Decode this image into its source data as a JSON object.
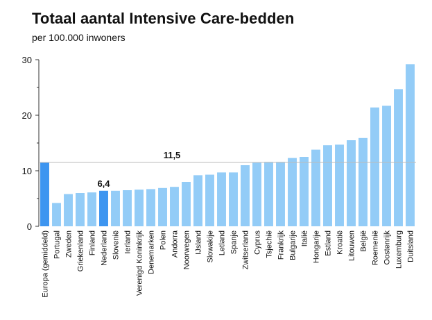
{
  "chart_data": {
    "type": "bar",
    "title": "Totaal aantal Intensive Care-bedden",
    "subtitle": "per 100.000 inwoners",
    "xlabel": "",
    "ylabel": "",
    "ylim": [
      0,
      30
    ],
    "yticks": [
      0,
      10,
      20,
      30
    ],
    "grid": false,
    "reference_line": {
      "value": 11.5,
      "label": "11,5"
    },
    "colors": {
      "default": "#93CCF7",
      "highlight": "#3D95F0",
      "axis": "#333333",
      "refline": "#bbbbbb"
    },
    "highlighted": [
      "Europa (gemiddeld)",
      "Nederland"
    ],
    "categories": [
      "Europa (gemiddeld)",
      "Portugal",
      "Zweden",
      "Griekenland",
      "Finland",
      "Nederland",
      "Slovenië",
      "Ierland",
      "Verenigd Koninkrijk",
      "Denemarken",
      "Polen",
      "Andorra",
      "Noorwegen",
      "IJsland",
      "Slowakije",
      "Letland",
      "Spanje",
      "Zwitserland",
      "Cyprus",
      "Tsjechië",
      "Frankrijk",
      "Bulgarije",
      "Italië",
      "Hongarije",
      "Estland",
      "Kroatië",
      "Litouwen",
      "België",
      "Roemenië",
      "Oostenrijk",
      "Luxemburg",
      "Duitsland"
    ],
    "values": [
      11.5,
      4.2,
      5.8,
      6.0,
      6.1,
      6.4,
      6.4,
      6.5,
      6.6,
      6.7,
      6.9,
      7.1,
      8.0,
      9.2,
      9.3,
      9.7,
      9.7,
      11.0,
      11.5,
      11.6,
      11.6,
      12.3,
      12.5,
      13.8,
      14.6,
      14.7,
      15.5,
      15.9,
      21.4,
      21.7,
      24.7,
      29.2
    ],
    "data_labels": [
      {
        "category": "Nederland",
        "text": "6,4"
      }
    ]
  }
}
